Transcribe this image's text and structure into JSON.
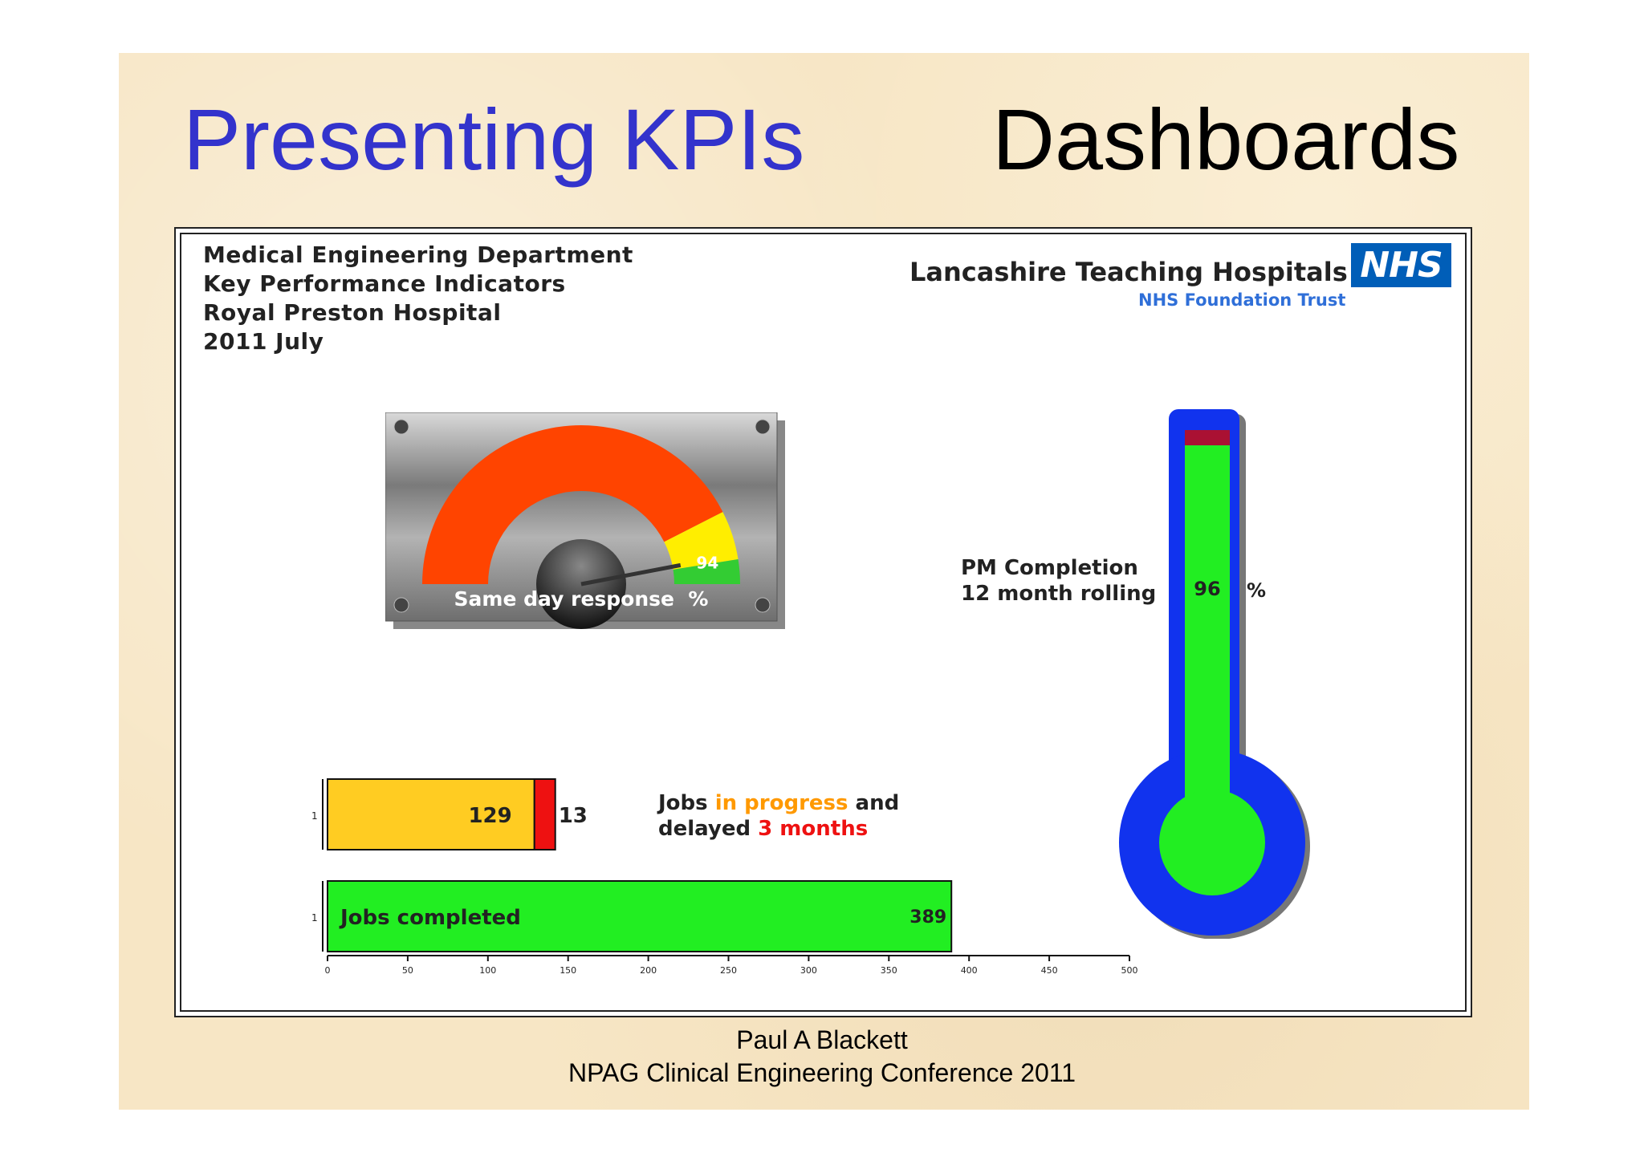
{
  "slide": {
    "title_left": "Presenting KPIs",
    "title_right": "Dashboards",
    "footer_author": "Paul A Blackett",
    "footer_event": "NPAG Clinical Engineering Conference 2011"
  },
  "dashboard": {
    "department_lines": [
      "Medical Engineering Department",
      "Key Performance Indicators",
      "Royal Preston Hospital",
      "2011  July"
    ],
    "trust_name": "Lancashire Teaching Hospitals",
    "trust_sub": "NHS Foundation Trust",
    "nhs_logo": "NHS",
    "pm_label_line1": "PM Completion",
    "pm_label_line2": "12 month rolling",
    "pm_percent_sign": "%",
    "jobs_text_1": "Jobs ",
    "jobs_text_orange": "in progress",
    "jobs_text_2": " and",
    "jobs_text_3": "delayed ",
    "jobs_text_red": "3 months"
  },
  "colors": {
    "title_blue": "#3333cc",
    "gauge_red": "#ff4400",
    "gauge_yellow": "#ffee00",
    "gauge_green": "#33cc33",
    "thermo_blue": "#1133ee",
    "thermo_green": "#22ee22",
    "bar_yellow": "#ffcc22",
    "bar_red": "#ee1111",
    "bar_green": "#22ee22"
  },
  "chart_data": [
    {
      "type": "gauge",
      "label": "Same day response  %",
      "value": 94,
      "value_label": "94",
      "range": [
        0,
        100
      ],
      "bands": [
        {
          "color": "red",
          "from": 0,
          "to": 85
        },
        {
          "color": "yellow",
          "from": 85,
          "to": 95
        },
        {
          "color": "green",
          "from": 95,
          "to": 100
        }
      ]
    },
    {
      "type": "thermometer",
      "label": "PM Completion 12 month rolling",
      "value": 96,
      "value_label": "96",
      "unit": "%",
      "range": [
        0,
        100
      ]
    },
    {
      "type": "bar",
      "orientation": "horizontal",
      "xlim": [
        0,
        500
      ],
      "xticks": [
        0,
        50,
        100,
        150,
        200,
        250,
        300,
        350,
        400,
        450,
        500
      ],
      "row_labels": [
        "1",
        "1"
      ],
      "bars": [
        {
          "segments": [
            {
              "name": "in progress",
              "value": 129,
              "label": "129",
              "color": "yellow"
            },
            {
              "name": "delayed 3 months",
              "value": 13,
              "label": "13",
              "color": "red"
            }
          ]
        },
        {
          "segments": [
            {
              "name": "Jobs completed",
              "value": 389,
              "label": "389",
              "color": "green",
              "inner_text": "Jobs completed"
            }
          ]
        }
      ]
    }
  ]
}
